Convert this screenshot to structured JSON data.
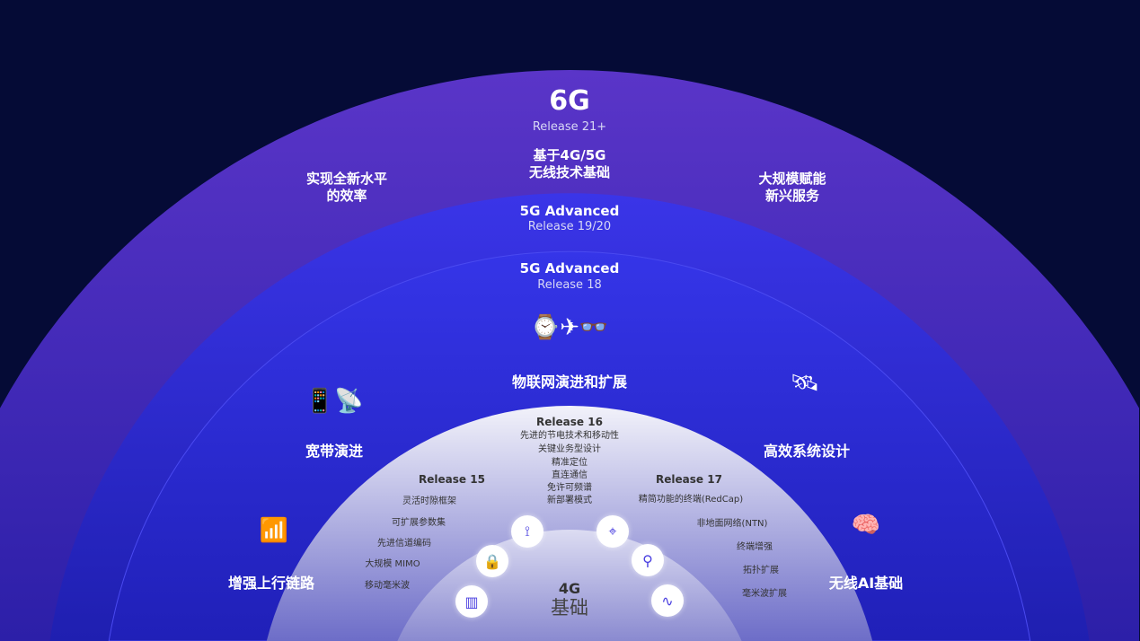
{
  "outer": {
    "title": "6G",
    "release": "Release 21+",
    "center_text": "基于4G/5G\n无线技术基础",
    "left": "实现全新水平\n的效率",
    "right": "大规模赋能\n新兴服务"
  },
  "ring2": {
    "title": "5G Advanced",
    "release": "Release 19/20"
  },
  "ring3": {
    "title": "5G Advanced",
    "release": "Release 18",
    "features": [
      "物联网演进和扩展",
      "宽带演进",
      "高效系统设计",
      "增强上行链路",
      "无线AI基础"
    ]
  },
  "inner": {
    "r16": {
      "title": "Release 16",
      "items": [
        "先进的节电技术和移动性",
        "关键业务型设计",
        "精准定位",
        "直连通信",
        "免许可频谱",
        "新部署模式"
      ]
    },
    "r15": {
      "title": "Release 15",
      "items": [
        "灵活时隙框架",
        "可扩展参数集",
        "先进信道编码",
        "大规模 MIMO",
        "移动毫米波"
      ]
    },
    "r17": {
      "title": "Release 17",
      "items": [
        "精简功能的终端(RedCap)",
        "非地面网络(NTN)",
        "终端增强",
        "拓扑扩展",
        "毫米波扩展"
      ]
    },
    "core": {
      "title": "4G",
      "subtitle": "基础"
    }
  },
  "colors": {
    "background": "#050b36",
    "outer": "#4a2fc4",
    "ring": "#2a2ad8",
    "inner": "#e8e8f5"
  }
}
